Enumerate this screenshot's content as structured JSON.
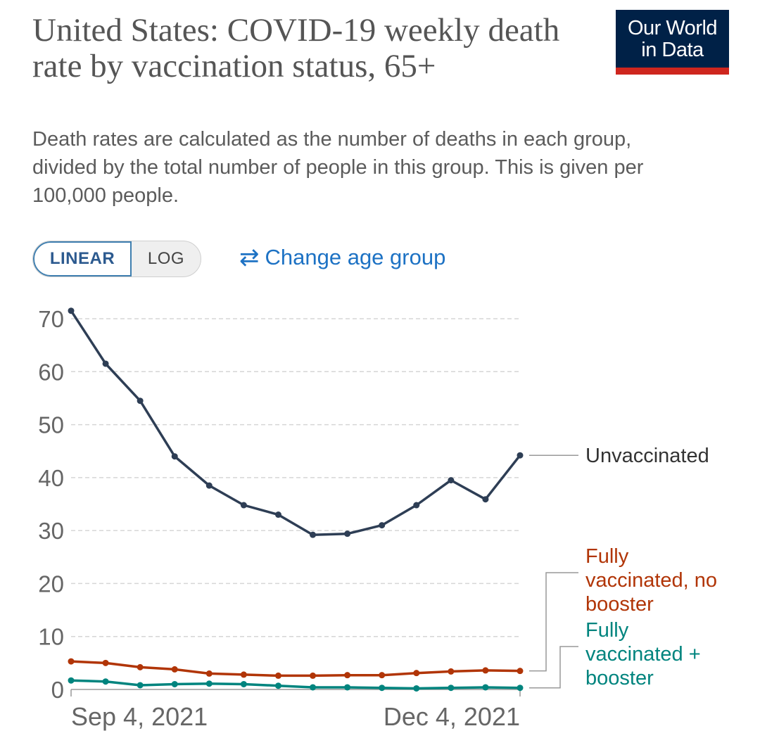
{
  "header": {
    "title": "United States: COVID-19 weekly death rate by vaccination status, 65+",
    "subtitle": "Death rates are calculated as the number of deaths in each group, divided by the total number of people in this group. This is given per 100,000 people.",
    "logo_line1": "Our World",
    "logo_line2": "in Data",
    "logo_bg": "#002147",
    "logo_accent": "#ce261e"
  },
  "controls": {
    "linear_label": "LINEAR",
    "log_label": "LOG",
    "change_age_label": "Change age group",
    "change_age_icon": "swap-arrows-icon",
    "selected_scale": "LINEAR"
  },
  "chart_data": {
    "type": "line",
    "title": "United States: COVID-19 weekly death rate by vaccination status, 65+",
    "xlabel": "",
    "ylabel": "",
    "ylim": [
      0,
      70
    ],
    "yticks": [
      0,
      10,
      20,
      30,
      40,
      50,
      60,
      70
    ],
    "x_tick_labels": [
      "Sep 4, 2021",
      "Dec 4, 2021"
    ],
    "grid": "horizontal dashed",
    "legend": "right, inline labels at line ends",
    "x": [
      "2021-08-28",
      "2021-09-04",
      "2021-09-11",
      "2021-09-18",
      "2021-09-25",
      "2021-10-02",
      "2021-10-09",
      "2021-10-16",
      "2021-10-23",
      "2021-10-30",
      "2021-11-06",
      "2021-11-13",
      "2021-11-20",
      "2021-11-27"
    ],
    "series": [
      {
        "name": "Unvaccinated",
        "label_lines": [
          "Unvaccinated"
        ],
        "color": "#2e3e55",
        "values": [
          71.5,
          61.5,
          54.5,
          44.0,
          38.5,
          34.8,
          33.0,
          29.2,
          29.4,
          31.0,
          34.8,
          39.5,
          35.9,
          44.2
        ]
      },
      {
        "name": "Fully vaccinated, no booster",
        "label_lines": [
          "Fully",
          "vaccinated, no",
          "booster"
        ],
        "color": "#b13507",
        "values": [
          5.3,
          5.0,
          4.2,
          3.8,
          3.0,
          2.8,
          2.6,
          2.6,
          2.7,
          2.7,
          3.1,
          3.4,
          3.6,
          3.5
        ]
      },
      {
        "name": "Fully vaccinated + booster",
        "label_lines": [
          "Fully",
          "vaccinated +",
          "booster"
        ],
        "color": "#00847e",
        "values": [
          1.7,
          1.5,
          0.8,
          1.0,
          1.1,
          1.0,
          0.7,
          0.4,
          0.4,
          0.3,
          0.2,
          0.3,
          0.4,
          0.3
        ]
      }
    ]
  }
}
